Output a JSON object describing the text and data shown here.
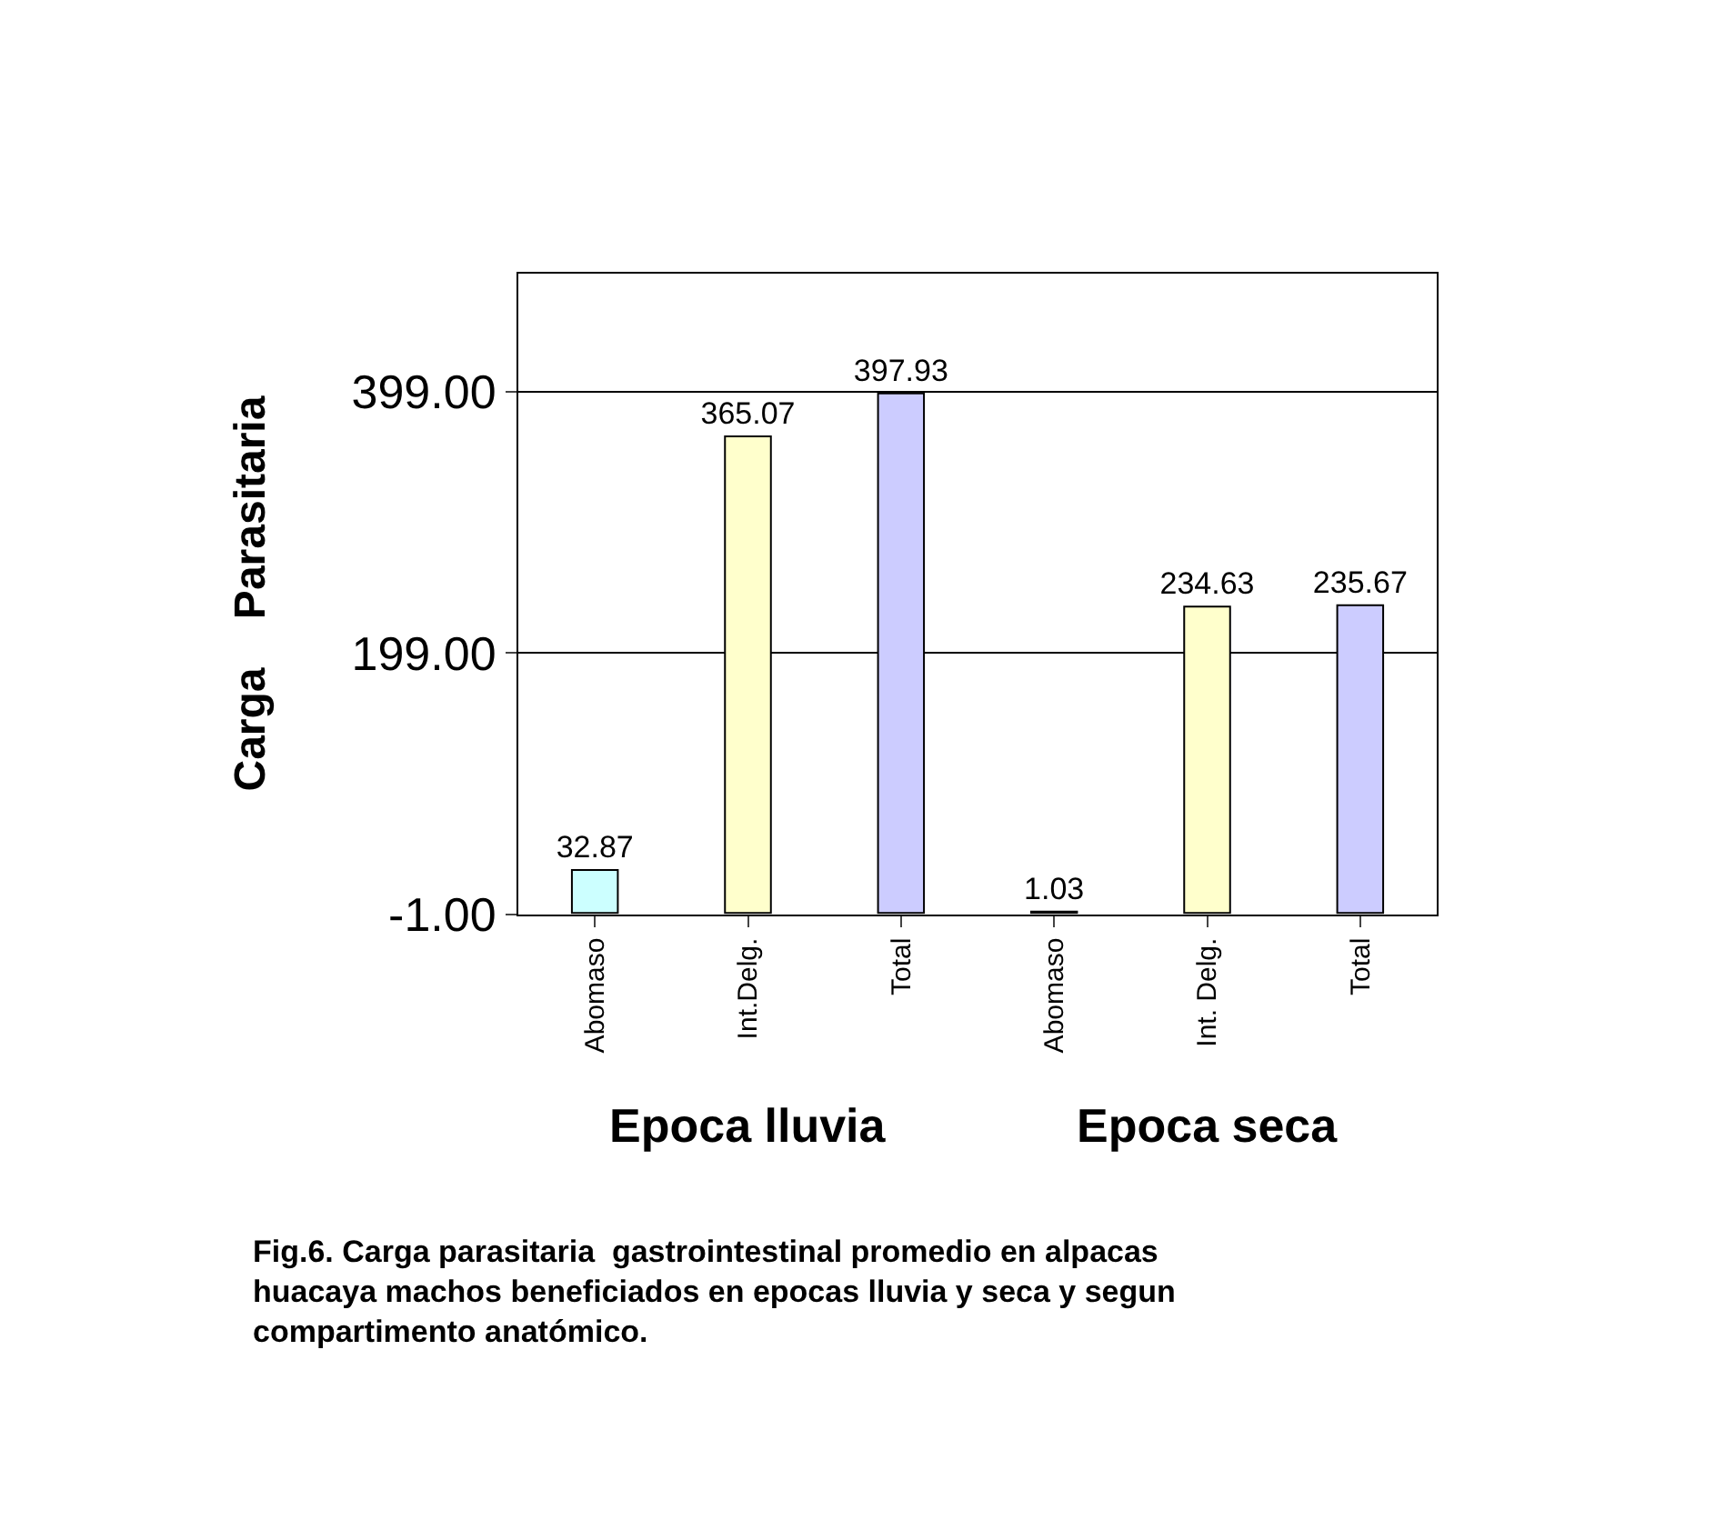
{
  "chart_data": {
    "type": "bar",
    "ylabel": "Carga    Parasitaria",
    "categories": [
      "Abomaso",
      "Int.Delg.",
      "Total",
      "Abomaso",
      "Int. Delg.",
      "Total"
    ],
    "values": [
      32.87,
      365.07,
      397.93,
      1.03,
      234.63,
      235.67
    ],
    "colors": [
      "#ccffff",
      "#ffffcc",
      "#ccccff",
      "#ccffff",
      "#ffffcc",
      "#ccccff"
    ],
    "data_labels": true,
    "ylim": [
      -1,
      490
    ],
    "yticks": [
      {
        "value": -1,
        "label": "-1.00"
      },
      {
        "value": 199,
        "label": "199.00"
      },
      {
        "value": 399,
        "label": "399.00"
      }
    ],
    "grid": "y",
    "annotations": [
      "Epoca lluvia",
      "Epoca seca",
      "Fig.6. Carga parasitaria  gastrointestinal promedio en alpacas huacaya machos beneficiados en epocas lluvia y seca y segun compartimento anatómico."
    ]
  }
}
